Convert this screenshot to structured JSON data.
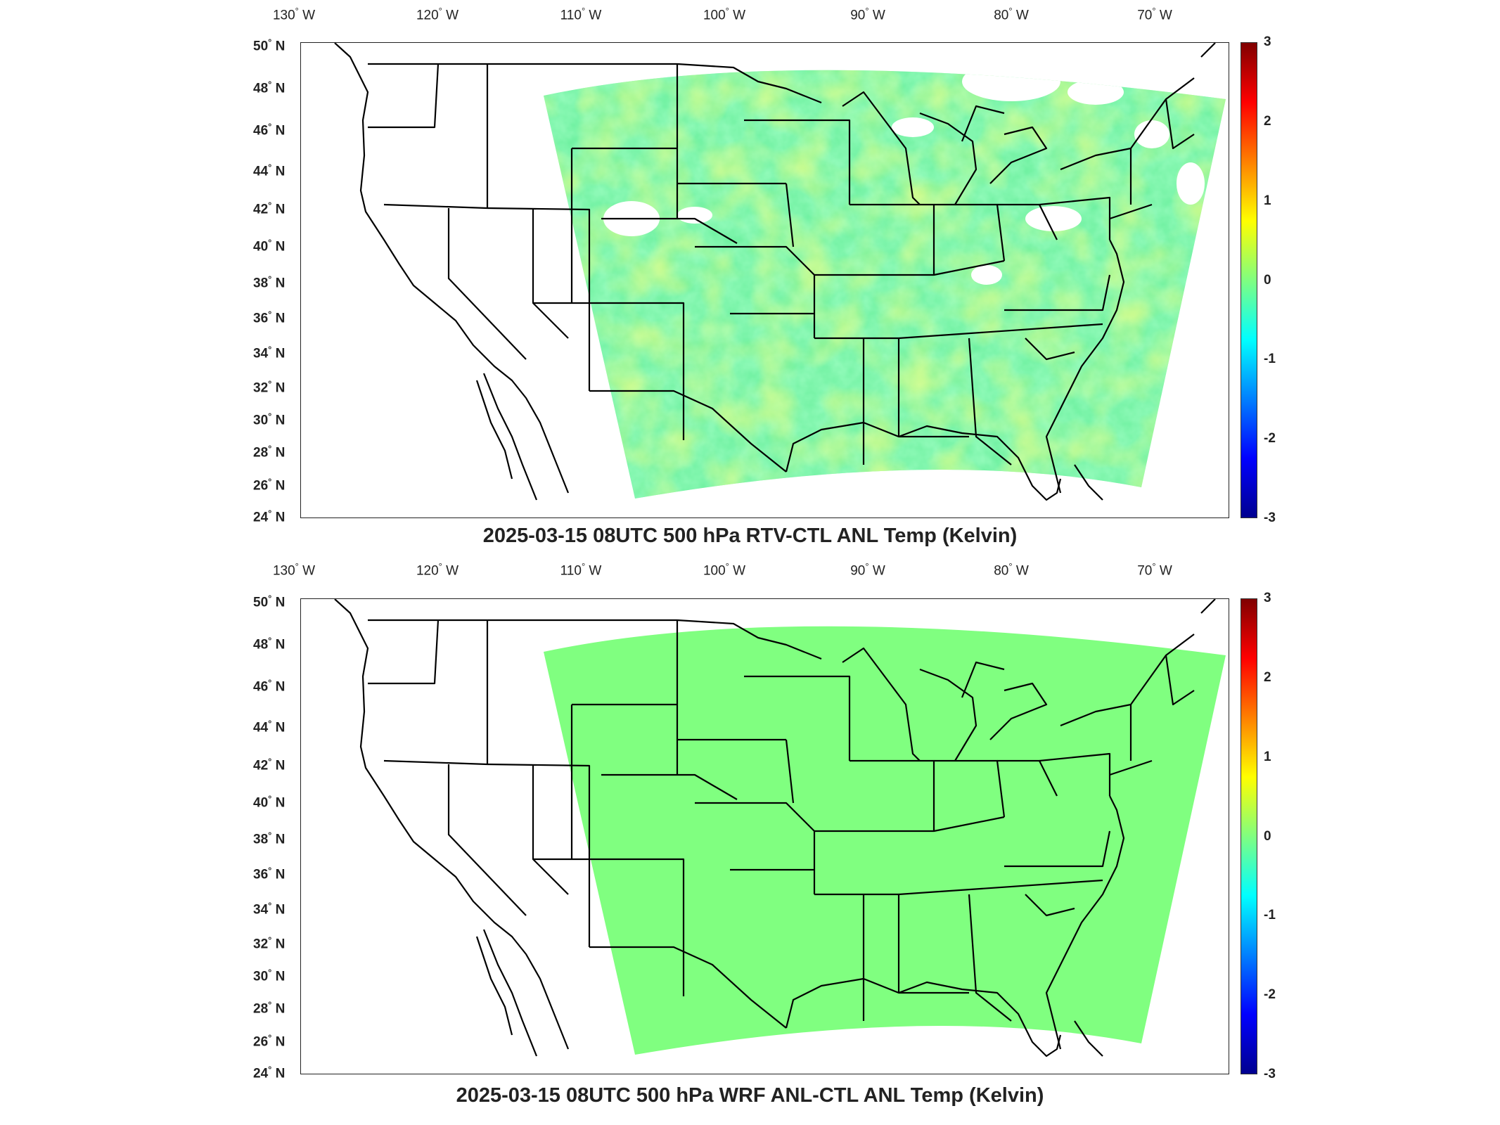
{
  "longitude_ticks": [
    "130",
    "120",
    "110",
    "100",
    "90",
    "80",
    "70"
  ],
  "longitude_suffix": "W",
  "latitude_ticks": [
    "50",
    "48",
    "46",
    "44",
    "42",
    "40",
    "38",
    "36",
    "34",
    "32",
    "30",
    "28",
    "26",
    "24"
  ],
  "latitude_suffix": "N",
  "colorbar_ticks": [
    "3",
    "2",
    "1",
    "0",
    "-1",
    "-2",
    "-3"
  ],
  "colorbar_range": [
    -3,
    3
  ],
  "colormap": "jet",
  "panels": [
    {
      "title": "2025-03-15 08UTC 500 hPa RTV-CTL ANL Temp (Kelvin)",
      "field": "noisy",
      "dominant_value_range": [
        -0.5,
        1.0
      ]
    },
    {
      "title": "2025-03-15 08UTC 500 hPa WRF ANL-CTL ANL Temp (Kelvin)",
      "field": "uniform",
      "dominant_value": 0
    }
  ],
  "colors": {
    "uniform_fill": "#80ff80",
    "boundaries": "#000000"
  }
}
